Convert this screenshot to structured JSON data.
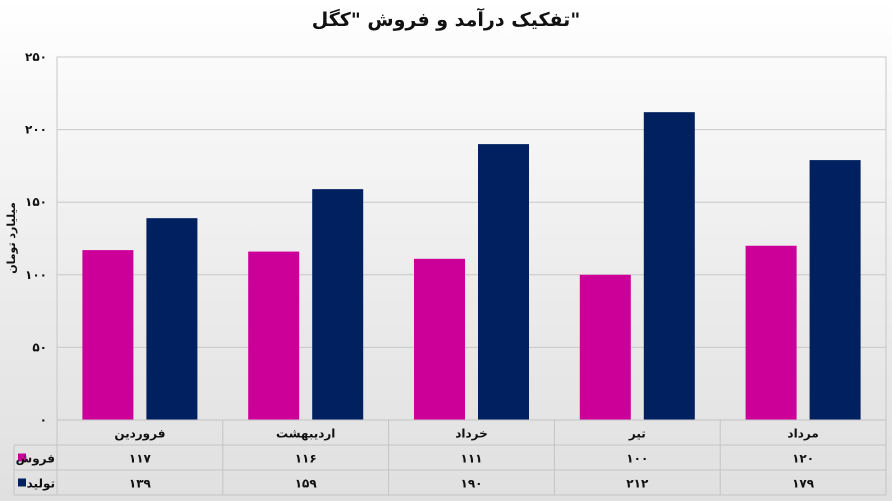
{
  "chart_data": {
    "type": "bar",
    "title": "تفکیک درآمد و فروش \"کگل\"",
    "ylabel": "میلیارد تومان",
    "ylim": [
      0,
      250
    ],
    "yticks": [
      "۰",
      "۵۰",
      "۱۰۰",
      "۱۵۰",
      "۲۰۰",
      "۲۵۰"
    ],
    "grid": true,
    "categories": [
      "فروردین",
      "اردیبهشت",
      "خرداد",
      "تیر",
      "مرداد"
    ],
    "series": [
      {
        "name": "فروش",
        "color": "#cc0099",
        "values": [
          117,
          116,
          111,
          100,
          120
        ],
        "labels": [
          "۱۱۷",
          "۱۱۶",
          "۱۱۱",
          "۱۰۰",
          "۱۲۰"
        ]
      },
      {
        "name": "تولید",
        "color": "#002060",
        "values": [
          139,
          159,
          190,
          212,
          179
        ],
        "labels": [
          "۱۳۹",
          "۱۵۹",
          "۱۹۰",
          "۲۱۲",
          "۱۷۹"
        ]
      }
    ],
    "legend": "data-table"
  }
}
